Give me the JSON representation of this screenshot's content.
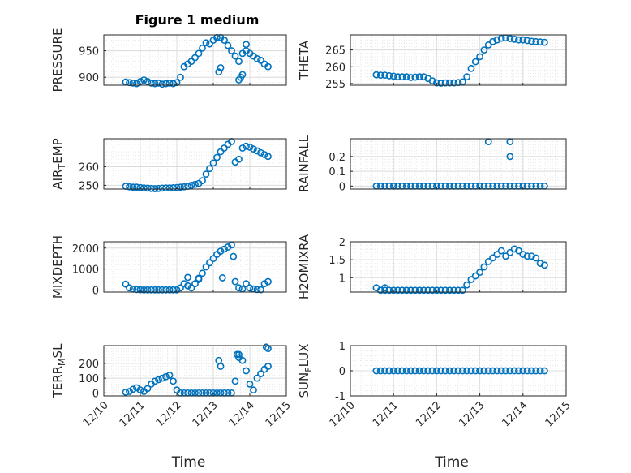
{
  "title": "Figure 1 medium",
  "x_label": "Time",
  "x_tick_labels": [
    "12/10",
    "12/11",
    "12/12",
    "12/13",
    "12/14",
    "12/15"
  ],
  "marker_color": "#0072BD",
  "chart_data": [
    {
      "type": "scatter",
      "ylabel": "PRESSURE",
      "ylim": [
        885,
        980
      ],
      "yticks": [
        900,
        950
      ],
      "grid": true,
      "x": [
        10.6,
        10.7,
        10.8,
        10.9,
        11.0,
        11.1,
        11.2,
        11.3,
        11.4,
        11.5,
        11.6,
        11.7,
        11.8,
        11.9,
        12.0,
        12.1,
        12.2,
        12.3,
        12.4,
        12.5,
        12.6,
        12.7,
        12.8,
        12.9,
        13.0,
        13.1,
        13.2,
        13.3,
        13.4,
        13.5,
        13.6,
        13.7,
        13.8,
        13.9,
        14.0,
        14.1,
        14.2,
        14.3,
        14.4,
        14.5,
        13.15,
        13.2,
        13.7,
        13.75,
        13.8,
        13.9
      ],
      "y": [
        891,
        890,
        889,
        888,
        892,
        895,
        892,
        889,
        888,
        889,
        887,
        888,
        889,
        888,
        890,
        900,
        920,
        925,
        930,
        937,
        945,
        955,
        965,
        963,
        970,
        975,
        975,
        970,
        960,
        950,
        940,
        930,
        945,
        950,
        945,
        940,
        935,
        932,
        925,
        920,
        910,
        918,
        895,
        900,
        905,
        962
      ]
    },
    {
      "type": "scatter",
      "ylabel": "THETA",
      "ylim": [
        254.5,
        269.5
      ],
      "yticks": [
        255,
        260,
        265
      ],
      "grid": true,
      "x": [
        10.6,
        10.7,
        10.8,
        10.9,
        11.0,
        11.1,
        11.2,
        11.3,
        11.4,
        11.5,
        11.6,
        11.7,
        11.8,
        11.9,
        12.0,
        12.1,
        12.2,
        12.3,
        12.4,
        12.5,
        12.6,
        12.7,
        12.8,
        12.9,
        13.0,
        13.1,
        13.2,
        13.3,
        13.4,
        13.5,
        13.6,
        13.7,
        13.8,
        13.9,
        14.0,
        14.1,
        14.2,
        14.3,
        14.4,
        14.5
      ],
      "y": [
        257.6,
        257.5,
        257.5,
        257.3,
        257.2,
        257.0,
        257.0,
        257.0,
        256.8,
        256.9,
        257.0,
        257.0,
        256.5,
        255.8,
        255.2,
        255.1,
        255.2,
        255.2,
        255.2,
        255.3,
        255.5,
        257.0,
        259.5,
        261.5,
        263.0,
        265.0,
        266.5,
        267.5,
        268.0,
        268.5,
        268.6,
        268.4,
        268.2,
        268.0,
        268.0,
        267.8,
        267.6,
        267.5,
        267.4,
        267.3
      ]
    },
    {
      "type": "scatter",
      "ylabel": "AIR_TEMP",
      "ylim": [
        248,
        275
      ],
      "yticks": [
        250,
        260
      ],
      "grid": true,
      "x": [
        10.6,
        10.7,
        10.8,
        10.9,
        11.0,
        11.1,
        11.2,
        11.3,
        11.4,
        11.5,
        11.6,
        11.7,
        11.8,
        11.9,
        12.0,
        12.1,
        12.2,
        12.3,
        12.4,
        12.5,
        12.6,
        12.7,
        12.8,
        12.9,
        13.0,
        13.1,
        13.2,
        13.3,
        13.4,
        13.5,
        13.6,
        13.7,
        13.8,
        13.9,
        14.0,
        14.1,
        14.2,
        14.3,
        14.4,
        14.5
      ],
      "y": [
        249.5,
        249.2,
        249.0,
        249.0,
        248.8,
        248.6,
        248.5,
        248.3,
        248.2,
        248.3,
        248.5,
        248.6,
        248.6,
        248.7,
        248.8,
        249.0,
        249.2,
        249.5,
        250.0,
        250.5,
        251.0,
        252.5,
        256.0,
        259.0,
        262.0,
        265.0,
        268.0,
        270.0,
        272.0,
        273.5,
        262.5,
        264.0,
        270.0,
        271.0,
        270.5,
        269.5,
        268.5,
        267.5,
        266.5,
        265.5
      ]
    },
    {
      "type": "scatter",
      "ylabel": "RAINFALL",
      "ylim": [
        -0.02,
        0.32
      ],
      "yticks": [
        0,
        0.1,
        0.2
      ],
      "grid": true,
      "x": [
        10.6,
        10.7,
        10.8,
        10.9,
        11.0,
        11.1,
        11.2,
        11.3,
        11.4,
        11.5,
        11.6,
        11.7,
        11.8,
        11.9,
        12.0,
        12.1,
        12.2,
        12.3,
        12.4,
        12.5,
        12.6,
        12.7,
        12.8,
        12.9,
        13.0,
        13.1,
        13.2,
        13.3,
        13.4,
        13.5,
        13.6,
        13.7,
        13.8,
        13.9,
        14.0,
        14.1,
        14.2,
        14.3,
        14.4,
        14.5,
        13.2,
        13.7,
        13.7
      ],
      "y": [
        0,
        0,
        0,
        0,
        0,
        0,
        0,
        0,
        0,
        0,
        0,
        0,
        0,
        0,
        0,
        0,
        0,
        0,
        0,
        0,
        0,
        0,
        0,
        0,
        0,
        0,
        0,
        0,
        0,
        0,
        0,
        0,
        0,
        0,
        0,
        0,
        0,
        0,
        0,
        0,
        0.3,
        0.3,
        0.2
      ]
    },
    {
      "type": "scatter",
      "ylabel": "MIXDEPTH",
      "ylim": [
        -100,
        2300
      ],
      "yticks": [
        0,
        1000,
        2000
      ],
      "grid": true,
      "x": [
        10.6,
        10.7,
        10.8,
        10.9,
        11.0,
        11.1,
        11.2,
        11.3,
        11.4,
        11.5,
        11.6,
        11.7,
        11.8,
        11.9,
        12.0,
        12.1,
        12.2,
        12.3,
        12.4,
        12.5,
        12.6,
        12.7,
        12.8,
        12.9,
        13.0,
        13.1,
        13.2,
        13.3,
        13.4,
        13.5,
        13.6,
        13.7,
        13.8,
        13.9,
        14.0,
        14.1,
        14.2,
        14.3,
        14.4,
        14.5,
        12.3,
        12.6,
        13.25,
        13.55
      ],
      "y": [
        280,
        100,
        40,
        20,
        10,
        5,
        5,
        5,
        5,
        5,
        5,
        5,
        5,
        5,
        5,
        100,
        300,
        200,
        100,
        300,
        500,
        800,
        1100,
        1300,
        1500,
        1700,
        1850,
        1950,
        2050,
        2150,
        400,
        100,
        50,
        300,
        100,
        50,
        20,
        10,
        300,
        400,
        600,
        560,
        580,
        1600
      ]
    },
    {
      "type": "scatter",
      "ylabel": "H2OMIXRA",
      "ylim": [
        0.6,
        2.0
      ],
      "yticks": [
        1,
        1.5,
        2
      ],
      "grid": true,
      "x": [
        10.6,
        10.7,
        10.8,
        10.9,
        11.0,
        11.1,
        11.2,
        11.3,
        11.4,
        11.5,
        11.6,
        11.7,
        11.8,
        11.9,
        12.0,
        12.1,
        12.2,
        12.3,
        12.4,
        12.5,
        12.6,
        12.7,
        12.8,
        12.9,
        13.0,
        13.1,
        13.2,
        13.3,
        13.4,
        13.5,
        13.6,
        13.7,
        13.8,
        13.9,
        14.0,
        14.1,
        14.2,
        14.3,
        14.4,
        14.5,
        10.8
      ],
      "y": [
        0.72,
        0.65,
        0.65,
        0.65,
        0.65,
        0.65,
        0.65,
        0.65,
        0.65,
        0.65,
        0.65,
        0.65,
        0.65,
        0.65,
        0.65,
        0.65,
        0.65,
        0.65,
        0.65,
        0.65,
        0.65,
        0.8,
        0.95,
        1.05,
        1.15,
        1.3,
        1.45,
        1.55,
        1.65,
        1.75,
        1.6,
        1.7,
        1.8,
        1.75,
        1.65,
        1.6,
        1.6,
        1.55,
        1.4,
        1.35,
        0.72
      ]
    },
    {
      "type": "scatter",
      "ylabel": "TERR_MSL",
      "ylim": [
        -20,
        320
      ],
      "yticks": [
        0,
        100,
        200
      ],
      "grid": true,
      "x": [
        10.6,
        10.7,
        10.8,
        10.9,
        11.0,
        11.1,
        11.2,
        11.3,
        11.4,
        11.5,
        11.6,
        11.7,
        11.8,
        11.9,
        12.0,
        12.1,
        12.2,
        12.3,
        12.4,
        12.5,
        12.6,
        12.7,
        12.8,
        12.9,
        13.0,
        13.1,
        13.2,
        13.3,
        13.4,
        13.5,
        13.6,
        13.7,
        13.8,
        13.9,
        14.0,
        14.1,
        14.2,
        14.3,
        14.4,
        14.5,
        13.15,
        13.2,
        13.65,
        13.7,
        14.45,
        14.5
      ],
      "y": [
        5,
        10,
        25,
        35,
        20,
        10,
        30,
        60,
        80,
        90,
        100,
        110,
        120,
        80,
        20,
        0,
        0,
        0,
        0,
        0,
        0,
        0,
        0,
        0,
        0,
        0,
        0,
        0,
        0,
        0,
        80,
        260,
        220,
        150,
        60,
        20,
        100,
        130,
        160,
        180,
        220,
        180,
        260,
        240,
        310,
        300
      ]
    },
    {
      "type": "scatter",
      "ylabel": "SUN_FLUX",
      "ylim": [
        -1,
        1
      ],
      "yticks": [
        -1,
        0,
        1
      ],
      "grid": true,
      "x": [
        10.6,
        10.7,
        10.8,
        10.9,
        11.0,
        11.1,
        11.2,
        11.3,
        11.4,
        11.5,
        11.6,
        11.7,
        11.8,
        11.9,
        12.0,
        12.1,
        12.2,
        12.3,
        12.4,
        12.5,
        12.6,
        12.7,
        12.8,
        12.9,
        13.0,
        13.1,
        13.2,
        13.3,
        13.4,
        13.5,
        13.6,
        13.7,
        13.8,
        13.9,
        14.0,
        14.1,
        14.2,
        14.3,
        14.4,
        14.5
      ],
      "y": [
        0,
        0,
        0,
        0,
        0,
        0,
        0,
        0,
        0,
        0,
        0,
        0,
        0,
        0,
        0,
        0,
        0,
        0,
        0,
        0,
        0,
        0,
        0,
        0,
        0,
        0,
        0,
        0,
        0,
        0,
        0,
        0,
        0,
        0,
        0,
        0,
        0,
        0,
        0,
        0
      ]
    }
  ]
}
